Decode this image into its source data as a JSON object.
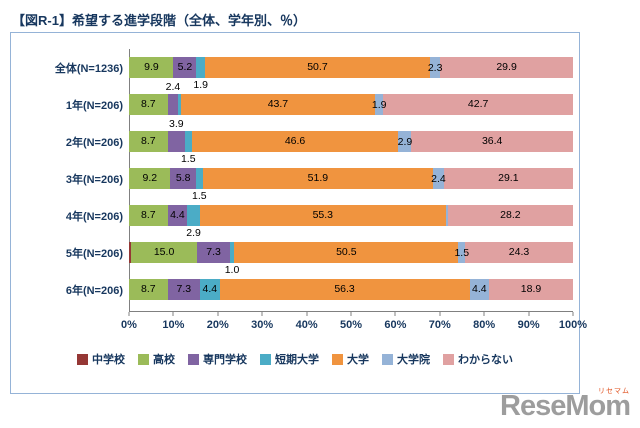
{
  "title": "【図R-1】希望する進学段階（全体、学年別、％）",
  "watermark": {
    "main": "ReseMom",
    "sub": "リセマム"
  },
  "chart_data": {
    "type": "bar",
    "stacked": true,
    "orientation": "horizontal",
    "title": "【図R-1】希望する進学段階（全体、学年別、％）",
    "categories": [
      "全体(N=1236)",
      "1年(N=206)",
      "2年(N=206)",
      "3年(N=206)",
      "4年(N=206)",
      "5年(N=206)",
      "6年(N=206)"
    ],
    "x_ticks": [
      "0%",
      "10%",
      "20%",
      "30%",
      "40%",
      "50%",
      "60%",
      "70%",
      "80%",
      "90%",
      "100%"
    ],
    "xlim": [
      0,
      100
    ],
    "grid": false,
    "legend_position": "bottom",
    "series": [
      {
        "name": "中学校",
        "color": "#953735",
        "values": [
          0.1,
          0.0,
          0.0,
          0.1,
          0.0,
          0.4,
          0.0
        ]
      },
      {
        "name": "高校",
        "color": "#9bbb59",
        "values": [
          9.9,
          8.7,
          8.7,
          9.2,
          8.7,
          15.0,
          8.7
        ]
      },
      {
        "name": "専門学校",
        "color": "#8064a2",
        "values": [
          5.2,
          2.4,
          3.9,
          5.8,
          4.4,
          7.3,
          7.3
        ]
      },
      {
        "name": "短期大学",
        "color": "#4bacc6",
        "values": [
          1.9,
          0.6,
          1.5,
          1.5,
          2.9,
          1.0,
          4.4
        ]
      },
      {
        "name": "大学",
        "color": "#f0943f",
        "values": [
          50.7,
          43.7,
          46.6,
          51.9,
          55.3,
          50.5,
          56.3
        ]
      },
      {
        "name": "大学院",
        "color": "#95b3d7",
        "values": [
          2.3,
          1.9,
          2.9,
          2.4,
          0.5,
          1.5,
          4.4
        ]
      },
      {
        "name": "わからない",
        "color": "#e0a1a1",
        "values": [
          29.9,
          42.7,
          36.4,
          29.1,
          28.2,
          24.3,
          18.9
        ]
      }
    ]
  }
}
